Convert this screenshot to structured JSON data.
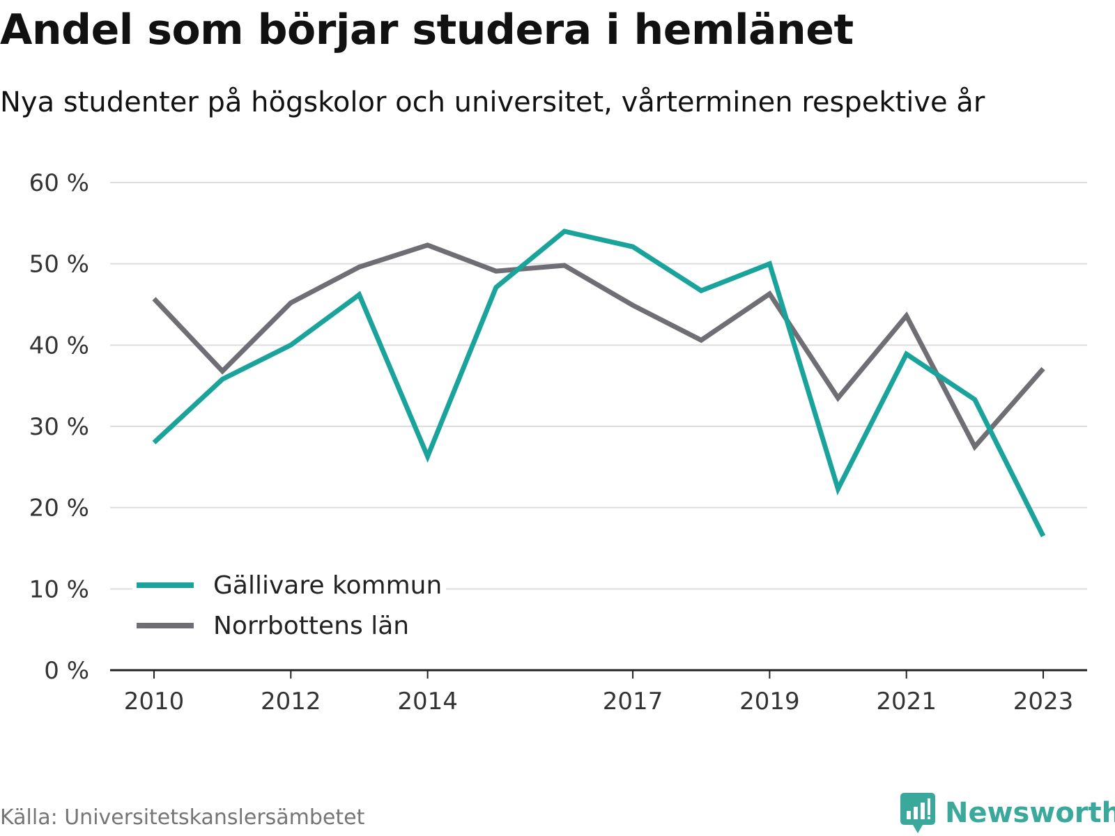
{
  "title": "Andel som börjar studera i hemlänet",
  "subtitle": "Nya studenter på högskolor och universitet, vårterminen respektive år",
  "source": "Källa: Universitetskanslersämbetet",
  "brand": {
    "name": "Newsworthy",
    "logo_icon": "bar-chart-speech-bubble-icon",
    "color": "#3aa89a"
  },
  "chart_data": {
    "type": "line",
    "title": "Andel som börjar studera i hemlänet",
    "subtitle": "Nya studenter på högskolor och universitet, vårterminen respektive år",
    "x": [
      2010,
      2011,
      2012,
      2013,
      2014,
      2015,
      2016,
      2017,
      2018,
      2019,
      2020,
      2021,
      2022,
      2023
    ],
    "x_tick_labels": [
      "2010",
      "2012",
      "2014",
      "2017",
      "2019",
      "2021",
      "2023"
    ],
    "x_tick_values": [
      2010,
      2012,
      2014,
      2017,
      2019,
      2021,
      2023
    ],
    "ylim": [
      0,
      60
    ],
    "y_ticks": [
      0,
      10,
      20,
      30,
      40,
      50,
      60
    ],
    "y_tick_labels": [
      "0 %",
      "10 %",
      "20 %",
      "30 %",
      "40 %",
      "50 %",
      "60 %"
    ],
    "grid": true,
    "legend_position": "bottom-left",
    "series": [
      {
        "name": "Gällivare kommun",
        "color": "#1aa39a",
        "values": [
          28.0,
          35.8,
          40.0,
          46.2,
          26.3,
          47.1,
          54.0,
          52.1,
          46.7,
          50.0,
          22.3,
          38.9,
          33.3,
          16.5
        ]
      },
      {
        "name": "Norrbottens län",
        "color": "#6f6e75",
        "values": [
          45.7,
          36.8,
          45.2,
          49.6,
          52.3,
          49.1,
          49.8,
          44.9,
          40.6,
          46.3,
          33.5,
          43.6,
          27.5,
          37.1
        ]
      }
    ]
  }
}
